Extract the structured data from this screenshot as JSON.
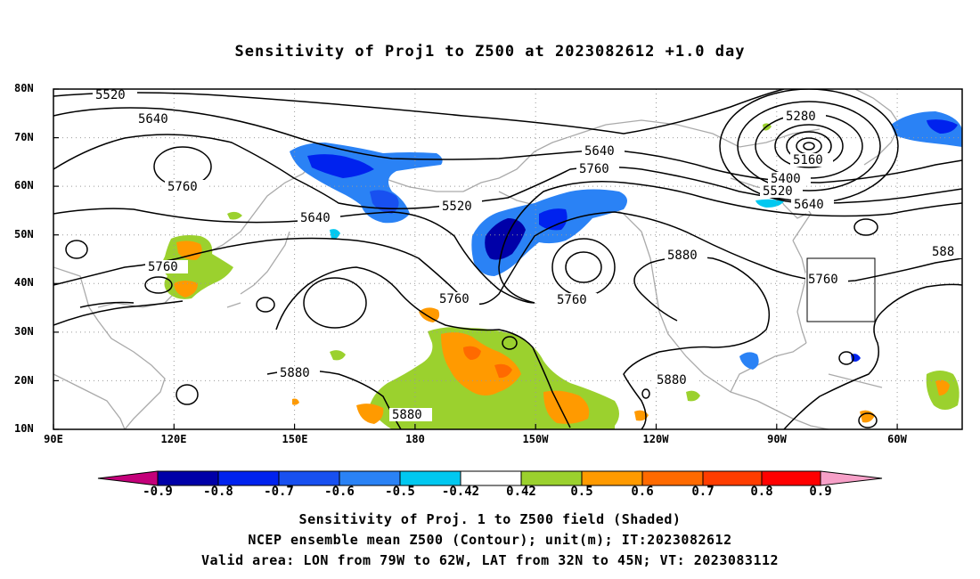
{
  "title": "Sensitivity of Proj1 to Z500 at 2023082612 +1.0 day",
  "lat_labels": [
    "80N",
    "70N",
    "60N",
    "50N",
    "40N",
    "30N",
    "20N",
    "10N"
  ],
  "lon_labels": [
    "90E",
    "120E",
    "150E",
    "180",
    "150W",
    "120W",
    "90W",
    "60W"
  ],
  "contour_labels": {
    "c5520a": "5520",
    "c5640a": "5640",
    "c5760a": "5760",
    "c5640b": "5640",
    "c5760b": "5760",
    "c5520b": "5520",
    "c5640c": "5640",
    "c5760c": "5760",
    "c5760d": "5760",
    "c5760e": "5760",
    "c5880a": "5880",
    "c5280": "5280",
    "c5160": "5160",
    "c5400": "5400",
    "c5520c": "5520",
    "c5640d": "5640",
    "c5880b": "588",
    "c5760f": "5760",
    "c5880c": "5880",
    "c5880d": "5880",
    "c5880e": "5880"
  },
  "colorbar": {
    "labels": [
      "-0.9",
      "-0.8",
      "-0.7",
      "-0.6",
      "-0.5",
      "-0.42",
      "0.42",
      "0.5",
      "0.6",
      "0.7",
      "0.8",
      "0.9"
    ],
    "colors": [
      "#0000a8",
      "#0022ee",
      "#1850f0",
      "#2a82f5",
      "#00c8f0",
      "#ffffff",
      "#9bd12e",
      "#ff9a00",
      "#ff6a00",
      "#ff3d00",
      "#ff0000"
    ],
    "low_end_color": "#c4007a",
    "high_end_color": "#f7a0c8"
  },
  "captions": [
    "Sensitivity of Proj. 1 to Z500 field (Shaded)",
    "NCEP ensemble mean Z500 (Contour); unit(m); IT:2023082612",
    "Valid area: LON from 79W to 62W, LAT from 32N to 45N; VT: 2023083112"
  ],
  "valid_area": {
    "lon": [
      "79W",
      "62W"
    ],
    "lat": [
      "32N",
      "45N"
    ]
  }
}
